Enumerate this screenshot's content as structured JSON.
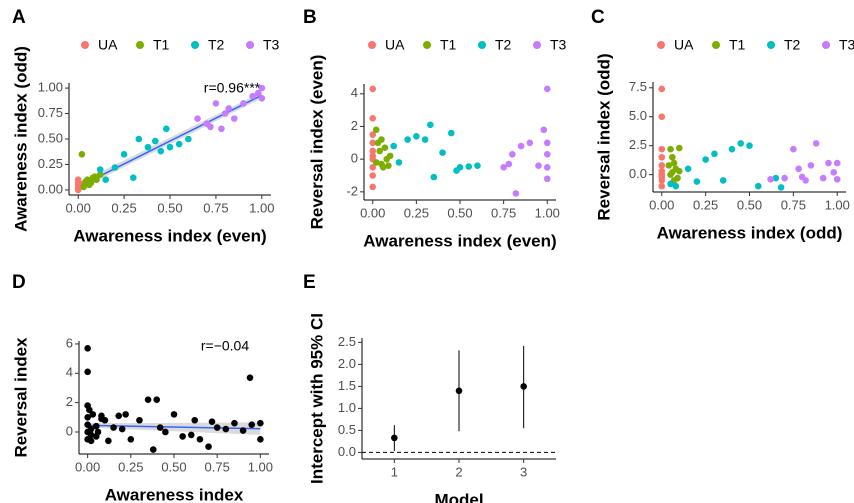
{
  "chart_data": [
    {
      "type": "scatter",
      "panel": "A",
      "x_label": "Awareness index (even)",
      "y_label": "Awareness index (odd)",
      "legend": "top",
      "annotation": "r=0.96***",
      "xlim": [
        -0.05,
        1.05
      ],
      "ylim": [
        -0.05,
        1.05
      ],
      "xticks": [
        {
          "value": 0,
          "label": "0.00"
        },
        {
          "value": 0.25,
          "label": "0.25"
        },
        {
          "value": 0.5,
          "label": "0.50"
        },
        {
          "value": 0.75,
          "label": "0.75"
        },
        {
          "value": 1,
          "label": "1.00"
        }
      ],
      "yticks": [
        {
          "value": 0,
          "label": "0.00"
        },
        {
          "value": 0.25,
          "label": "0.25"
        },
        {
          "value": 0.5,
          "label": "0.50"
        },
        {
          "value": 0.75,
          "label": "0.75"
        },
        {
          "value": 1,
          "label": "1.00"
        }
      ],
      "trend": {
        "x": [
          0,
          1
        ],
        "y": [
          0.03,
          0.93
        ],
        "lower": [
          0,
          0.9
        ],
        "upper": [
          0.07,
          0.96
        ],
        "color": "#3366ff"
      },
      "series": [
        {
          "name": "UA",
          "color": "#F8766D",
          "x": [
            0,
            0,
            0,
            0,
            0.01,
            0,
            0.02,
            0,
            0.01
          ],
          "values": [
            0.02,
            0.05,
            0,
            0.07,
            0.03,
            0.1,
            0.04,
            0.01,
            0.06
          ]
        },
        {
          "name": "T1",
          "color": "#7CAE00",
          "x": [
            0.02,
            0.04,
            0.05,
            0.06,
            0.08,
            0.1,
            0.12,
            0.03,
            0.07,
            0.09,
            0.05
          ],
          "values": [
            0.35,
            0.08,
            0.1,
            0.05,
            0.12,
            0.1,
            0.15,
            0.03,
            0.07,
            0.13,
            0.06
          ]
        },
        {
          "name": "T2",
          "color": "#00BFC4",
          "x": [
            0.12,
            0.15,
            0.2,
            0.25,
            0.33,
            0.38,
            0.42,
            0.48,
            0.5,
            0.55,
            0.6,
            0.45,
            0.3
          ],
          "values": [
            0.2,
            0.1,
            0.22,
            0.35,
            0.5,
            0.42,
            0.48,
            0.6,
            0.42,
            0.45,
            0.5,
            0.38,
            0.12
          ]
        },
        {
          "name": "T3",
          "color": "#C77CFF",
          "x": [
            0.65,
            0.7,
            0.75,
            0.78,
            0.8,
            0.82,
            0.85,
            0.9,
            0.95,
            0.98,
            1,
            1,
            0.72
          ],
          "values": [
            0.7,
            0.65,
            0.85,
            0.6,
            0.75,
            0.8,
            0.7,
            0.85,
            0.92,
            0.95,
            1,
            0.9,
            0.62
          ]
        }
      ]
    },
    {
      "type": "scatter",
      "panel": "B",
      "x_label": "Awareness index (even)",
      "y_label": "Reversal index (even)",
      "legend": "top",
      "xlim": [
        -0.05,
        1.05
      ],
      "ylim": [
        -2.5,
        4.6
      ],
      "xticks": [
        {
          "value": 0,
          "label": "0.00"
        },
        {
          "value": 0.25,
          "label": "0.25"
        },
        {
          "value": 0.5,
          "label": "0.50"
        },
        {
          "value": 0.75,
          "label": "0.75"
        },
        {
          "value": 1,
          "label": "1.00"
        }
      ],
      "yticks": [
        -2,
        0,
        2,
        4
      ],
      "series": [
        {
          "name": "UA",
          "color": "#F8766D",
          "x": [
            0,
            0,
            0,
            0,
            0,
            0,
            0,
            0,
            0,
            0
          ],
          "values": [
            4.3,
            2.5,
            1.5,
            0.5,
            -0.5,
            -1.7,
            0,
            1,
            -1,
            0.2
          ]
        },
        {
          "name": "T1",
          "color": "#7CAE00",
          "x": [
            0.02,
            0.03,
            0.04,
            0.05,
            0.06,
            0.07,
            0.08,
            0.1,
            0.02,
            0.05,
            0.09
          ],
          "values": [
            1.8,
            1,
            0.5,
            -0.3,
            -0.5,
            0.7,
            0,
            0.2,
            -0.2,
            1.2,
            -0.4
          ]
        },
        {
          "name": "T2",
          "color": "#00BFC4",
          "x": [
            0.12,
            0.15,
            0.2,
            0.25,
            0.33,
            0.35,
            0.4,
            0.45,
            0.48,
            0.5,
            0.55,
            0.6,
            0.3
          ],
          "values": [
            0.8,
            -0.2,
            1.2,
            1.4,
            2.1,
            -1.1,
            0.4,
            1.6,
            -0.7,
            -0.5,
            -0.45,
            -0.4,
            1.2
          ]
        },
        {
          "name": "T3",
          "color": "#C77CFF",
          "x": [
            0.75,
            0.8,
            0.82,
            0.85,
            0.98,
            1,
            1,
            1,
            0.9,
            0.78,
            0.95,
            1,
            1
          ],
          "values": [
            -0.5,
            0.3,
            -2.1,
            0.8,
            1.8,
            4.3,
            1.0,
            -0.5,
            1.0,
            -0.3,
            -0.4,
            -1.2,
            0.3
          ]
        }
      ]
    },
    {
      "type": "scatter",
      "panel": "C",
      "x_label": "Awareness index (odd)",
      "y_label": "Reversal index (odd)",
      "legend": "top",
      "xlim": [
        -0.05,
        1.05
      ],
      "ylim": [
        -1.5,
        8
      ],
      "xticks": [
        {
          "value": 0,
          "label": "0.00"
        },
        {
          "value": 0.25,
          "label": "0.25"
        },
        {
          "value": 0.5,
          "label": "0.50"
        },
        {
          "value": 0.75,
          "label": "0.75"
        },
        {
          "value": 1,
          "label": "1.00"
        }
      ],
      "yticks": [
        {
          "value": 0,
          "label": "0.0"
        },
        {
          "value": 2.5,
          "label": "2.5"
        },
        {
          "value": 5,
          "label": "5.0"
        },
        {
          "value": 7.5,
          "label": "7.5"
        }
      ],
      "series": [
        {
          "name": "UA",
          "color": "#F8766D",
          "x": [
            0,
            0,
            0,
            0,
            0,
            0,
            0,
            0,
            0,
            0
          ],
          "values": [
            7.4,
            5,
            2.2,
            1.5,
            0.8,
            0.3,
            -0.2,
            -0.5,
            -1,
            0
          ]
        },
        {
          "name": "T1",
          "color": "#7CAE00",
          "x": [
            0.05,
            0.06,
            0.07,
            0.08,
            0.1,
            0.05,
            0.09,
            0.04,
            0.07,
            0.1,
            0.06
          ],
          "values": [
            2.2,
            1.5,
            1,
            0.5,
            0.3,
            0,
            -0.3,
            0.8,
            -0.5,
            2.3,
            0.2
          ]
        },
        {
          "name": "T2",
          "color": "#00BFC4",
          "x": [
            0.05,
            0.08,
            0.15,
            0.2,
            0.25,
            0.3,
            0.35,
            0.4,
            0.45,
            0.5,
            0.55,
            0.65,
            0.68
          ],
          "values": [
            -0.8,
            -1,
            0.5,
            -0.6,
            1.3,
            1.8,
            -0.5,
            2.2,
            2.7,
            2.5,
            -1,
            -0.3,
            -1.1
          ]
        },
        {
          "name": "T3",
          "color": "#C77CFF",
          "x": [
            0.62,
            0.7,
            0.75,
            0.78,
            0.8,
            0.85,
            0.88,
            0.92,
            0.95,
            1,
            1,
            0.82,
            0.98
          ],
          "values": [
            -0.4,
            -0.3,
            2.2,
            0.5,
            -0.2,
            0.8,
            2.7,
            -0.3,
            1,
            1,
            -0.4,
            -0.5,
            0.2
          ]
        }
      ]
    },
    {
      "type": "scatter",
      "panel": "D",
      "x_label": "Awareness index",
      "y_label": "Reversal index",
      "annotation": "r=−0.04",
      "xlim": [
        -0.05,
        1.05
      ],
      "ylim": [
        -1.5,
        6.2
      ],
      "xticks": [
        {
          "value": 0,
          "label": "0.00"
        },
        {
          "value": 0.25,
          "label": "0.25"
        },
        {
          "value": 0.5,
          "label": "0.50"
        },
        {
          "value": 0.75,
          "label": "0.75"
        },
        {
          "value": 1,
          "label": "1.00"
        }
      ],
      "yticks": [
        0,
        2,
        4,
        6
      ],
      "trend": {
        "x": [
          0,
          1
        ],
        "y": [
          0.45,
          0.22
        ],
        "lower": [
          0.3,
          -0.2
        ],
        "upper": [
          0.6,
          0.65
        ],
        "color": "#3366ff"
      },
      "color": "#000000",
      "x": [
        0,
        0,
        0,
        0,
        0,
        0,
        0,
        0.01,
        0.02,
        0.02,
        0.03,
        0.05,
        0.05,
        0.06,
        0.08,
        0.1,
        0.12,
        0.15,
        0.18,
        0.2,
        0.22,
        0.25,
        0.3,
        0.35,
        0.38,
        0.4,
        0.42,
        0.45,
        0.5,
        0.55,
        0.6,
        0.62,
        0.65,
        0.7,
        0.72,
        0.75,
        0.8,
        0.85,
        0.9,
        0.94,
        0.95,
        1,
        1,
        0.02,
        0.08
      ],
      "values": [
        5.7,
        4.1,
        1.8,
        1,
        0.5,
        0,
        -0.5,
        1.5,
        0.2,
        -0.6,
        1.2,
        0.4,
        -0.3,
        0,
        1.1,
        0.8,
        -0.6,
        0.3,
        1.1,
        0.2,
        1.2,
        -0.5,
        0.8,
        2.2,
        -1.2,
        2.2,
        0.3,
        0,
        1.2,
        -0.3,
        -0.2,
        0.8,
        -0.5,
        -1,
        0.7,
        0.3,
        0.2,
        0.6,
        0.1,
        3.7,
        0.5,
        0.6,
        -0.5,
        -0.2,
        0.9
      ]
    },
    {
      "type": "errorbar",
      "panel": "E",
      "x_label": "Model",
      "y_label": "Intercept with 95% CI",
      "categories": [
        "1",
        "2",
        "3"
      ],
      "values": [
        0.33,
        1.4,
        1.5
      ],
      "lower": [
        0.03,
        0.48,
        0.55
      ],
      "upper": [
        0.62,
        2.32,
        2.42
      ],
      "color": "#000000",
      "ylim": [
        -0.15,
        2.6
      ],
      "yticks": [
        {
          "value": 0,
          "label": "0.0"
        },
        {
          "value": 0.5,
          "label": "0.5"
        },
        {
          "value": 1,
          "label": "1.0"
        },
        {
          "value": 1.5,
          "label": "1.5"
        },
        {
          "value": 2,
          "label": "2.0"
        },
        {
          "value": 2.5,
          "label": "2.5"
        }
      ],
      "reference_line": 0
    }
  ]
}
